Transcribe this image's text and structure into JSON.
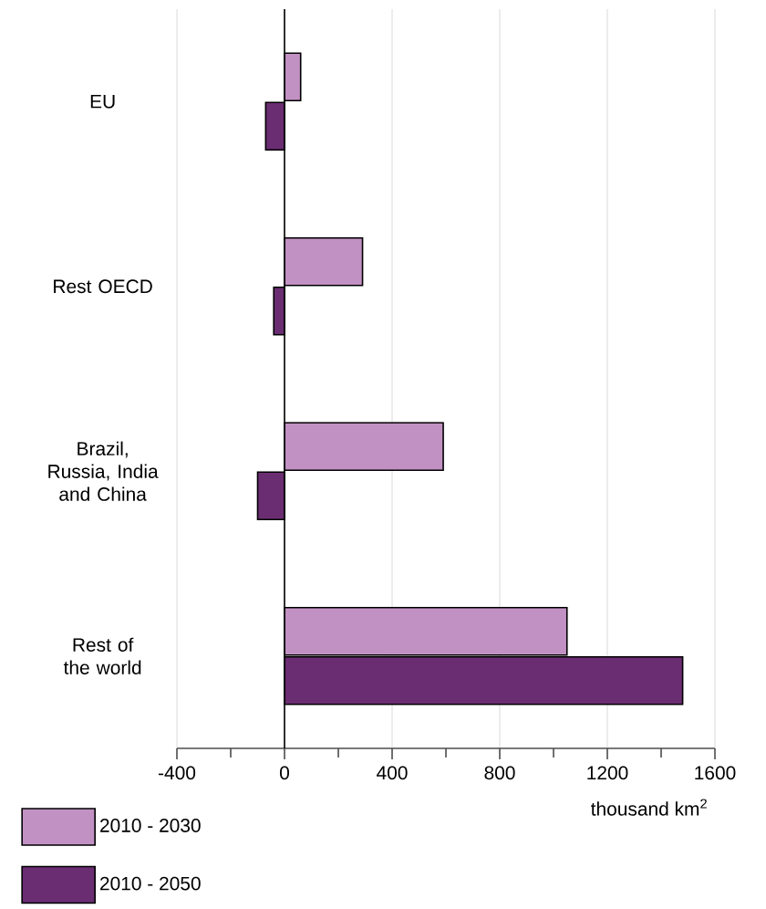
{
  "chart_data": {
    "type": "bar",
    "orientation": "horizontal",
    "xlabel": "thousand km$^{2}$",
    "categories": [
      "EU",
      "Rest OECD",
      "Brazil, Russia, India and China",
      "Rest of the world"
    ],
    "series": [
      {
        "name": "2010 - 2030",
        "color": "#c291c3",
        "values": [
          60,
          290,
          590,
          1050
        ]
      },
      {
        "name": "2010 - 2050",
        "color": "#6b2d72",
        "values": [
          -70,
          -40,
          -100,
          1480
        ]
      }
    ],
    "xlim": [
      -400,
      1600
    ],
    "xticks": [
      -400,
      {
        "value": -200,
        "label": null
      },
      0,
      {
        "value": 200,
        "label": null
      },
      400,
      {
        "value": 600,
        "label": null
      },
      800,
      {
        "value": 1000,
        "label": null
      },
      1200,
      {
        "value": 1400,
        "label": null
      },
      1600
    ],
    "grid": "x",
    "legend": "bottom left"
  }
}
